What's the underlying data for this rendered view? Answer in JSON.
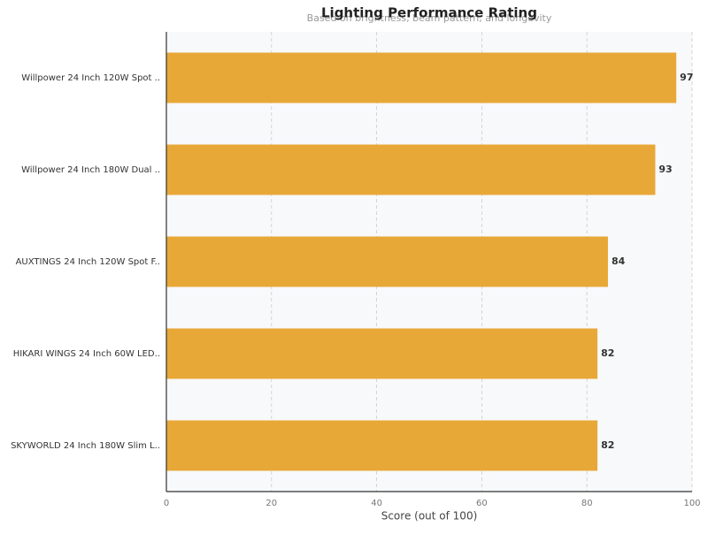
{
  "chart_data": {
    "type": "bar",
    "orientation": "horizontal",
    "title": "Lighting Performance Rating",
    "subtitle": "Based on brightness, beam pattern, and longevity",
    "categories": [
      "Willpower 24 Inch 120W Spot ..",
      "Willpower 24 Inch 180W Dual ..",
      "AUXTINGS 24 Inch 120W Spot F..",
      "HIKARI WINGS 24 Inch 60W LED..",
      "SKYWORLD 24 Inch 180W Slim L.."
    ],
    "values": [
      97,
      93,
      84,
      82,
      82
    ],
    "color": "#e8a838",
    "xlabel": "Score (out of 100)",
    "xlim": [
      0,
      100
    ],
    "xticks": [
      0,
      20,
      40,
      60,
      80,
      100
    ],
    "grid": true
  }
}
